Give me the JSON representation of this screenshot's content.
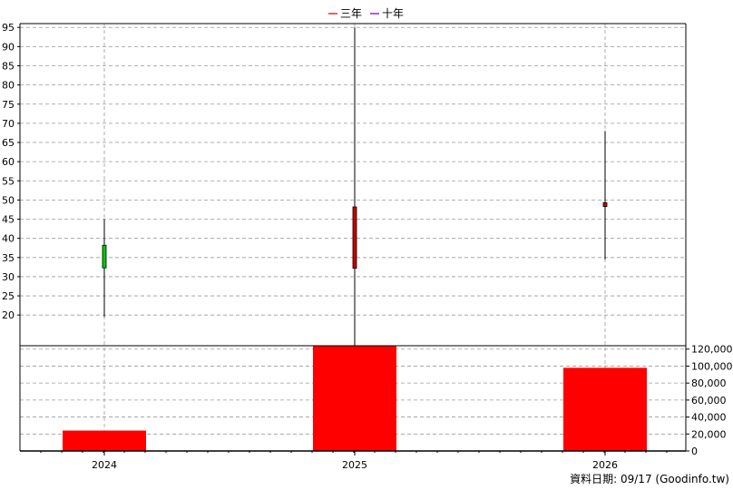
{
  "chart_data": {
    "type": "candlestick-with-volume",
    "categories": [
      "2024",
      "2025",
      "2026"
    ],
    "legend": [
      {
        "name": "三年",
        "color": "#cc0000"
      },
      {
        "name": "十年",
        "color": "#6600cc"
      }
    ],
    "price": {
      "ylim": [
        12,
        96
      ],
      "ticks": [
        20,
        25,
        30,
        35,
        40,
        45,
        50,
        55,
        60,
        65,
        70,
        75,
        80,
        85,
        90,
        95
      ],
      "candles": [
        {
          "category": "2024",
          "open": 38.2,
          "close": 32.3,
          "high": 45,
          "low": 19.5,
          "color": "#00cc00"
        },
        {
          "category": "2025",
          "open": 32.2,
          "close": 48.2,
          "high": 95,
          "low": 12,
          "color": "#cc0000"
        },
        {
          "category": "2026",
          "open": 48.3,
          "close": 49.3,
          "high": 68,
          "low": 34.5,
          "color": "#cc0000"
        }
      ]
    },
    "volume": {
      "ylim": [
        0,
        124000
      ],
      "ticks": [
        0,
        20000,
        40000,
        60000,
        80000,
        100000,
        120000
      ],
      "tick_labels": [
        "0",
        "20,000",
        "40,000",
        "60,000",
        "80,000",
        "100,000",
        "120,000"
      ],
      "values": [
        24000,
        124500,
        98000
      ],
      "color": "#ff0000"
    },
    "grid": true
  },
  "footer": {
    "text": "資料日期: 09/17  (Goodinfo.tw)"
  }
}
